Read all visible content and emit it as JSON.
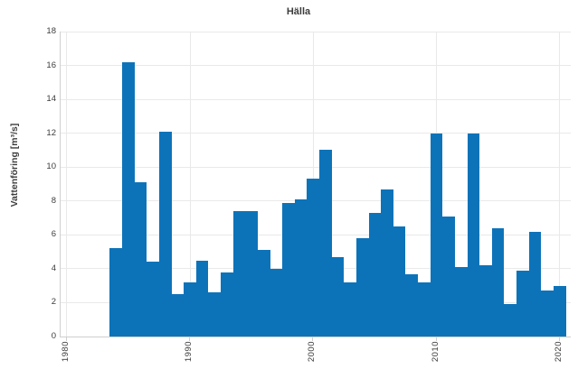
{
  "chart": {
    "title": "Hälla",
    "bar_color": "#0d73b9",
    "grid_color": "#e9e9e9",
    "axis_color": "#cfcfcf",
    "text_color": "#3c3c3c",
    "background": "#ffffff"
  },
  "chart_data": {
    "type": "bar",
    "title": "Hälla",
    "xlabel": "",
    "ylabel": "Vattenföring [m³/s]",
    "x": [
      1984,
      1985,
      1986,
      1987,
      1988,
      1989,
      1990,
      1991,
      1992,
      1993,
      1994,
      1995,
      1996,
      1997,
      1998,
      1999,
      2000,
      2001,
      2002,
      2003,
      2004,
      2005,
      2006,
      2007,
      2008,
      2009,
      2010,
      2011,
      2012,
      2013,
      2014,
      2015,
      2016,
      2017,
      2018,
      2019,
      2020
    ],
    "values": [
      5.2,
      16.2,
      9.1,
      4.4,
      12.1,
      2.5,
      3.2,
      4.5,
      2.6,
      3.8,
      7.4,
      7.4,
      5.1,
      4.0,
      7.9,
      8.1,
      9.3,
      11.0,
      4.7,
      3.2,
      5.8,
      7.3,
      8.7,
      6.5,
      3.7,
      3.2,
      12.0,
      7.1,
      4.1,
      12.0,
      4.2,
      6.4,
      1.9,
      3.9,
      6.2,
      2.7,
      3.0
    ],
    "xticks": [
      1980,
      1990,
      2000,
      2010,
      2020
    ],
    "yticks": [
      0,
      2,
      4,
      6,
      8,
      10,
      12,
      14,
      16,
      18
    ],
    "xlim": [
      1979.5,
      2020.9
    ],
    "ylim": [
      0,
      18
    ],
    "grid": true,
    "legend": false,
    "bar_width_years": 1
  }
}
